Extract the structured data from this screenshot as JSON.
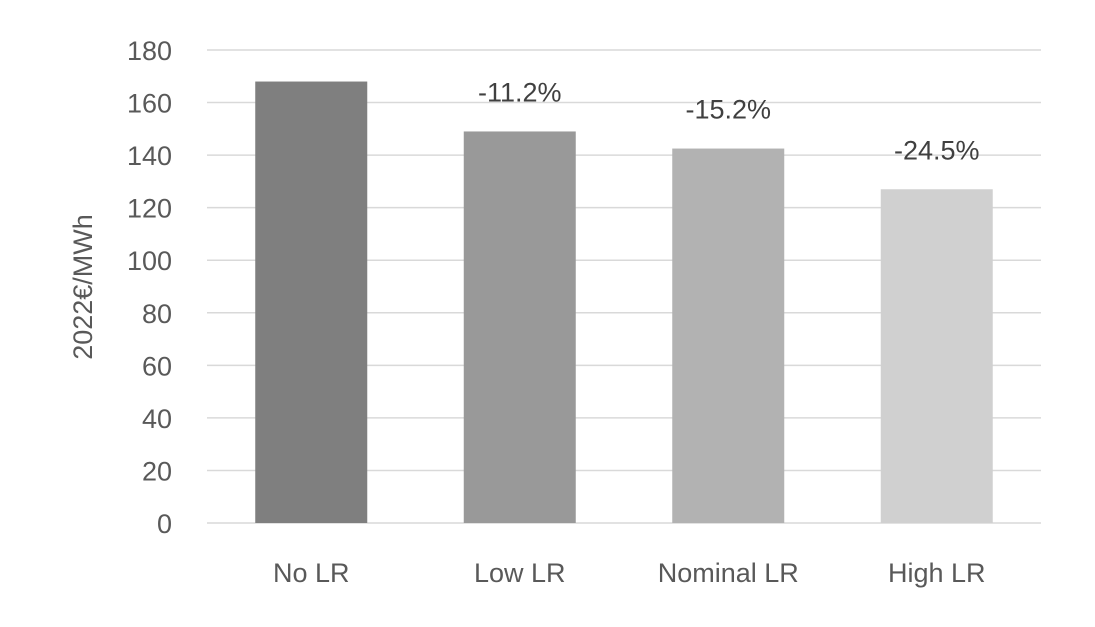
{
  "chart_data": {
    "type": "bar",
    "categories": [
      "No LR",
      "Low LR",
      "Nominal LR",
      "High LR"
    ],
    "values": [
      168,
      149,
      142.5,
      127
    ],
    "data_labels": [
      "",
      "-11.2%",
      "-15.2%",
      "-24.5%"
    ],
    "title": "",
    "xlabel": "",
    "ylabel": "2022€/MWh",
    "ylim": [
      0,
      180
    ],
    "yticks": [
      0,
      20,
      40,
      60,
      80,
      100,
      120,
      140,
      160,
      180
    ],
    "grid": true,
    "legend": "none",
    "bar_colors": [
      "#7f7f7f",
      "#999999",
      "#b2b2b2",
      "#d0d0d0"
    ],
    "grid_color": "#d9d9d9",
    "text_color": "#595959"
  }
}
